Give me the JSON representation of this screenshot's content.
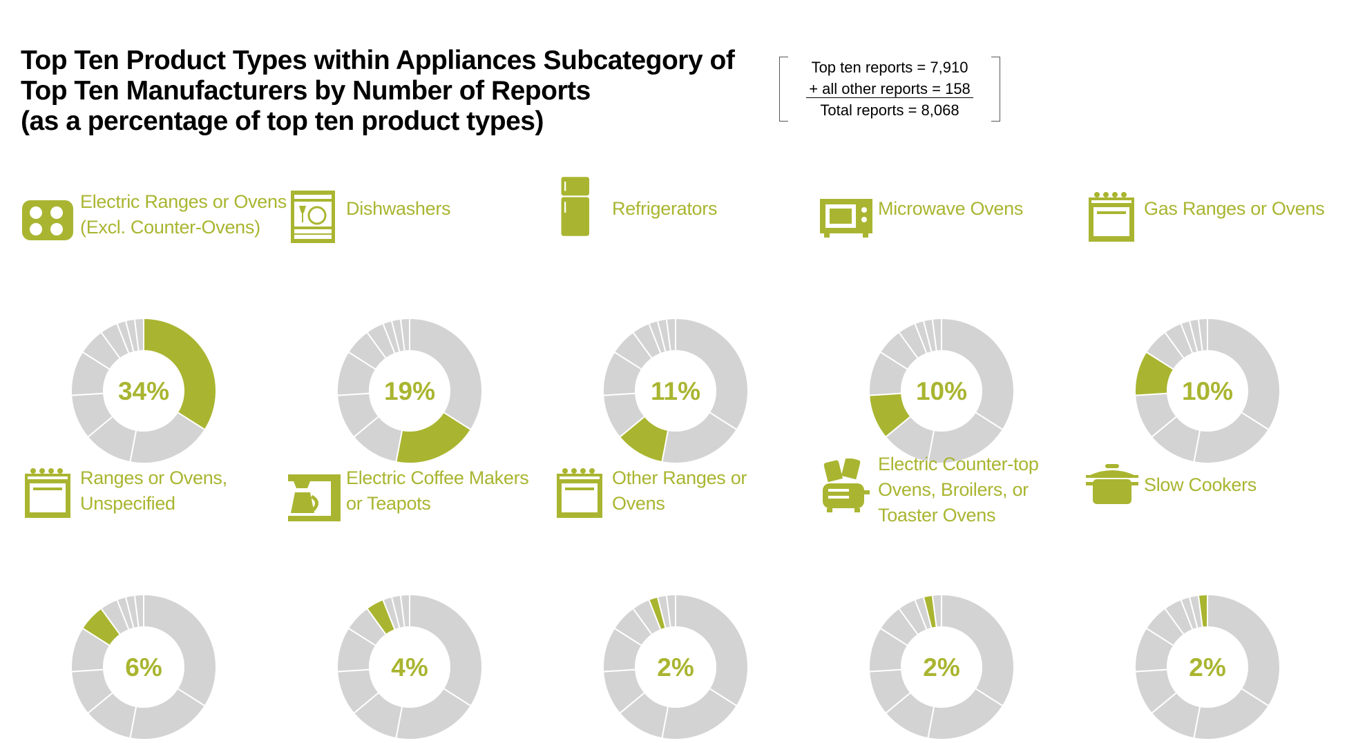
{
  "title": {
    "line1": "Top Ten Product Types within Appliances Subcategory of",
    "line2": "Top Ten Manufacturers by Number of Reports",
    "line3": "(as a percentage of top ten product types)"
  },
  "totals": {
    "line1": "Top ten reports = 7,910",
    "line2": "+ all other reports = 158",
    "line3": "Total reports = 8,068"
  },
  "colors": {
    "highlight": "#a9b530",
    "other": "#d3d3d3",
    "separator": "#ffffff"
  },
  "chart_data": {
    "type": "pie",
    "categories": [
      "Electric Ranges or Ovens (Excl. Counter-Ovens)",
      "Dishwashers",
      "Refrigerators",
      "Microwave Ovens",
      "Gas Ranges or Ovens",
      "Ranges or Ovens, Unspecified",
      "Electric Coffee Makers or Teapots",
      "Other Ranges or Ovens",
      "Electric Counter-top Ovens, Broilers, or Toaster Ovens",
      "Slow Cookers"
    ],
    "values": [
      34,
      19,
      11,
      10,
      10,
      6,
      4,
      2,
      2,
      2
    ],
    "charts": [
      {
        "label_lines": [
          "Electric Ranges or Ovens",
          "(Excl. Counter-Ovens)"
        ],
        "value_label": "34%",
        "highlight_index": 0,
        "icon": "electric-cooktop-icon"
      },
      {
        "label_lines": [
          "Dishwashers"
        ],
        "value_label": "19%",
        "highlight_index": 1,
        "icon": "dishwasher-icon"
      },
      {
        "label_lines": [
          "Refrigerators"
        ],
        "value_label": "11%",
        "highlight_index": 2,
        "icon": "refrigerator-icon"
      },
      {
        "label_lines": [
          "Microwave Ovens"
        ],
        "value_label": "10%",
        "highlight_index": 3,
        "icon": "microwave-icon"
      },
      {
        "label_lines": [
          "Gas Ranges or Ovens"
        ],
        "value_label": "10%",
        "highlight_index": 4,
        "icon": "range-oven-icon"
      },
      {
        "label_lines": [
          "Ranges or Ovens,",
          "Unspecified"
        ],
        "value_label": "6%",
        "highlight_index": 5,
        "icon": "range-oven-icon"
      },
      {
        "label_lines": [
          "Electric Coffee Makers",
          "or Teapots"
        ],
        "value_label": "4%",
        "highlight_index": 6,
        "icon": "coffee-maker-icon"
      },
      {
        "label_lines": [
          "Other Ranges or",
          "Ovens"
        ],
        "value_label": "2%",
        "highlight_index": 7,
        "icon": "range-oven-icon"
      },
      {
        "label_lines": [
          "Electric Counter-top",
          "Ovens, Broilers, or",
          "Toaster Ovens"
        ],
        "value_label": "2%",
        "highlight_index": 8,
        "icon": "toaster-icon"
      },
      {
        "label_lines": [
          "Slow Cookers"
        ],
        "value_label": "2%",
        "highlight_index": 9,
        "icon": "slow-cooker-icon"
      }
    ]
  }
}
